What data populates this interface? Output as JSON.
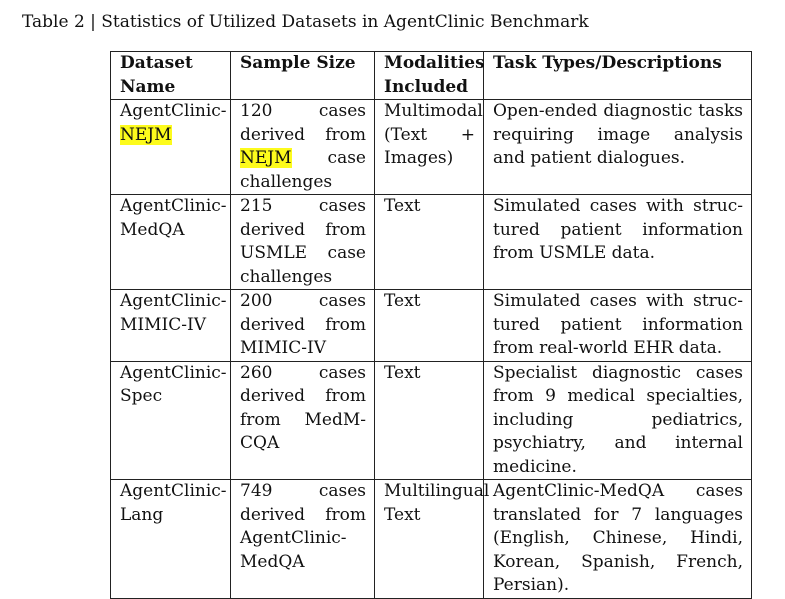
{
  "caption": "Table 2 | Statistics of Utilized Datasets in AgentClinic Benchmark",
  "highlight_color": "#fdfb1c",
  "table": {
    "headers": {
      "dataset": "Dataset Name",
      "sample": "Sample Size",
      "modalities": "Modalities Included",
      "tasks": "Task Types/Descriptions"
    },
    "rows": [
      {
        "dataset_prefix": "AgentClinic-",
        "dataset_suffix": "NEJM",
        "sample_a": "120 cases derived from ",
        "sample_hl": "NEJM",
        "sample_b": " case challenges",
        "modalities": "Multimodal (Text + Images)",
        "tasks": "Open-ended diagnostic tasks requiring image analysis and patient dialogues."
      },
      {
        "dataset_prefix": "AgentClinic-",
        "dataset_suffix": "MedQA",
        "sample": "215 cases derived from USMLE case challenges",
        "modalities": "Text",
        "tasks": "Simulated cases with struc­tured patient information from USMLE data."
      },
      {
        "dataset_prefix": "AgentClinic-",
        "dataset_suffix": "MIMIC-IV",
        "sample": "200 cases derived from MIMIC-IV",
        "modalities": "Text",
        "tasks": "Simulated cases with struc­tured patient information from real-world EHR data."
      },
      {
        "dataset_prefix": "AgentClinic-",
        "dataset_suffix": "Spec",
        "sample": "260 cases derived from from MedM­CQA",
        "modalities": "Text",
        "tasks": "Specialist diagnostic cases from 9 medical specialties, in­cluding pediatrics, psychiatry, and internal medicine."
      },
      {
        "dataset_prefix": "AgentClinic-",
        "dataset_suffix": "Lang",
        "sample": "749 cases derived from AgentClinic-MedQA",
        "modalities": "Multilingual Text",
        "tasks": "AgentClinic-MedQA cases translated for 7 languages (English, Chinese, Hindi, Korean, Spanish, French, Persian)."
      }
    ]
  }
}
